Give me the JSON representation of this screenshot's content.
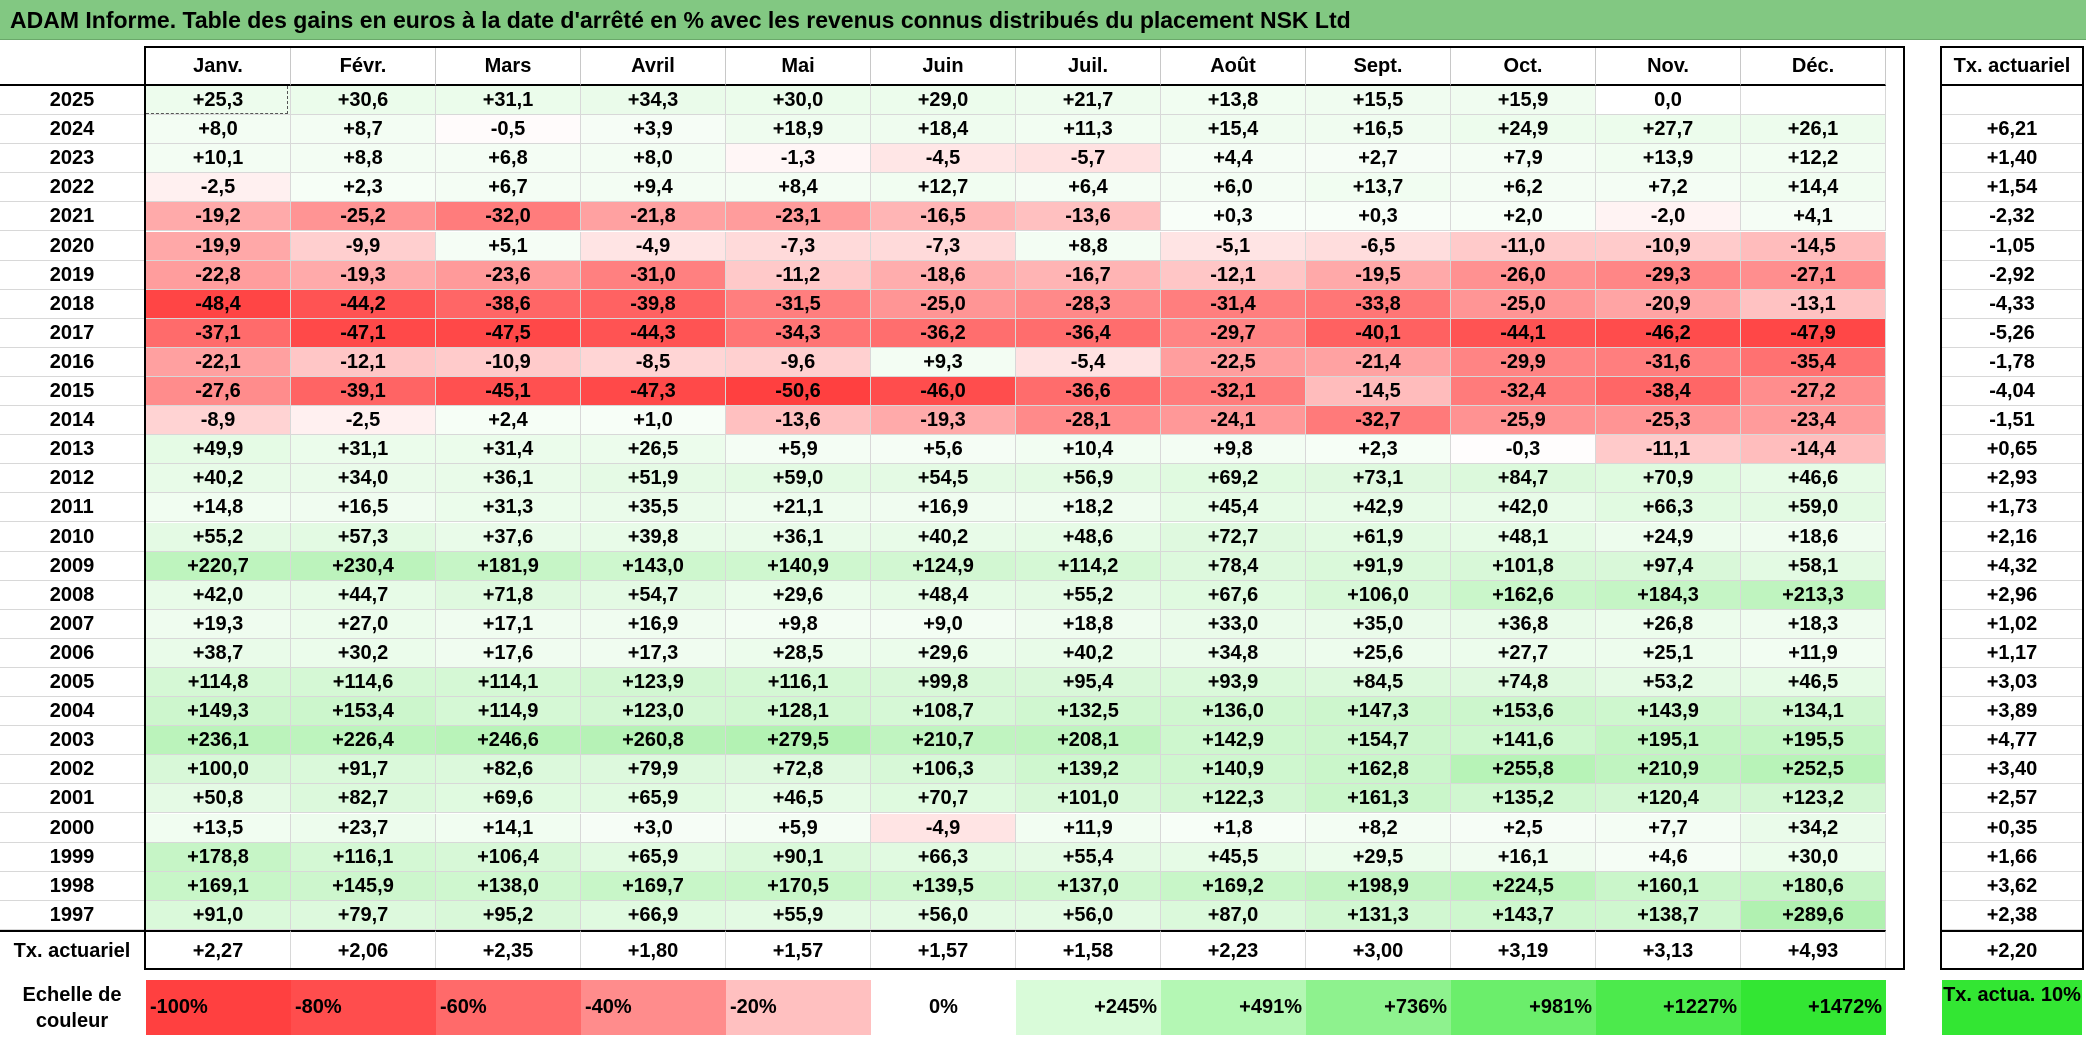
{
  "title": "ADAM Informe. Table des gains en euros à la date d'arrêté en % avec les revenus connus distribués du placement NSK Ltd",
  "months": [
    "Janv.",
    "Févr.",
    "Mars",
    "Avril",
    "Mai",
    "Juin",
    "Juil.",
    "Août",
    "Sept.",
    "Oct.",
    "Nov.",
    "Déc."
  ],
  "act_header": "Tx. actuariel",
  "rows": [
    {
      "year": "2025",
      "values": [
        "+25,3",
        "+30,6",
        "+31,1",
        "+34,3",
        "+30,0",
        "+29,0",
        "+21,7",
        "+13,8",
        "+15,5",
        "+15,9",
        "0,0",
        ""
      ],
      "act": ""
    },
    {
      "year": "2024",
      "values": [
        "+8,0",
        "+8,7",
        "-0,5",
        "+3,9",
        "+18,9",
        "+18,4",
        "+11,3",
        "+15,4",
        "+16,5",
        "+24,9",
        "+27,7",
        "+26,1"
      ],
      "act": "+6,21"
    },
    {
      "year": "2023",
      "values": [
        "+10,1",
        "+8,8",
        "+6,8",
        "+8,0",
        "-1,3",
        "-4,5",
        "-5,7",
        "+4,4",
        "+2,7",
        "+7,9",
        "+13,9",
        "+12,2"
      ],
      "act": "+1,40"
    },
    {
      "year": "2022",
      "values": [
        "-2,5",
        "+2,3",
        "+6,7",
        "+9,4",
        "+8,4",
        "+12,7",
        "+6,4",
        "+6,0",
        "+13,7",
        "+6,2",
        "+7,2",
        "+14,4"
      ],
      "act": "+1,54"
    },
    {
      "year": "2021",
      "values": [
        "-19,2",
        "-25,2",
        "-32,0",
        "-21,8",
        "-23,1",
        "-16,5",
        "-13,6",
        "+0,3",
        "+0,3",
        "+2,0",
        "-2,0",
        "+4,1"
      ],
      "act": "-2,32"
    },
    {
      "year": "2020",
      "values": [
        "-19,9",
        "-9,9",
        "+5,1",
        "-4,9",
        "-7,3",
        "-7,3",
        "+8,8",
        "-5,1",
        "-6,5",
        "-11,0",
        "-10,9",
        "-14,5"
      ],
      "act": "-1,05"
    },
    {
      "year": "2019",
      "values": [
        "-22,8",
        "-19,3",
        "-23,6",
        "-31,0",
        "-11,2",
        "-18,6",
        "-16,7",
        "-12,1",
        "-19,5",
        "-26,0",
        "-29,3",
        "-27,1"
      ],
      "act": "-2,92"
    },
    {
      "year": "2018",
      "values": [
        "-48,4",
        "-44,2",
        "-38,6",
        "-39,8",
        "-31,5",
        "-25,0",
        "-28,3",
        "-31,4",
        "-33,8",
        "-25,0",
        "-20,9",
        "-13,1"
      ],
      "act": "-4,33"
    },
    {
      "year": "2017",
      "values": [
        "-37,1",
        "-47,1",
        "-47,5",
        "-44,3",
        "-34,3",
        "-36,2",
        "-36,4",
        "-29,7",
        "-40,1",
        "-44,1",
        "-46,2",
        "-47,9"
      ],
      "act": "-5,26"
    },
    {
      "year": "2016",
      "values": [
        "-22,1",
        "-12,1",
        "-10,9",
        "-8,5",
        "-9,6",
        "+9,3",
        "-5,4",
        "-22,5",
        "-21,4",
        "-29,9",
        "-31,6",
        "-35,4"
      ],
      "act": "-1,78"
    },
    {
      "year": "2015",
      "values": [
        "-27,6",
        "-39,1",
        "-45,1",
        "-47,3",
        "-50,6",
        "-46,0",
        "-36,6",
        "-32,1",
        "-14,5",
        "-32,4",
        "-38,4",
        "-27,2"
      ],
      "act": "-4,04"
    },
    {
      "year": "2014",
      "values": [
        "-8,9",
        "-2,5",
        "+2,4",
        "+1,0",
        "-13,6",
        "-19,3",
        "-28,1",
        "-24,1",
        "-32,7",
        "-25,9",
        "-25,3",
        "-23,4"
      ],
      "act": "-1,51"
    },
    {
      "year": "2013",
      "values": [
        "+49,9",
        "+31,1",
        "+31,4",
        "+26,5",
        "+5,9",
        "+5,6",
        "+10,4",
        "+9,8",
        "+2,3",
        "-0,3",
        "-11,1",
        "-14,4"
      ],
      "act": "+0,65"
    },
    {
      "year": "2012",
      "values": [
        "+40,2",
        "+34,0",
        "+36,1",
        "+51,9",
        "+59,0",
        "+54,5",
        "+56,9",
        "+69,2",
        "+73,1",
        "+84,7",
        "+70,9",
        "+46,6"
      ],
      "act": "+2,93"
    },
    {
      "year": "2011",
      "values": [
        "+14,8",
        "+16,5",
        "+31,3",
        "+35,5",
        "+21,1",
        "+16,9",
        "+18,2",
        "+45,4",
        "+42,9",
        "+42,0",
        "+66,3",
        "+59,0"
      ],
      "act": "+1,73"
    },
    {
      "year": "2010",
      "values": [
        "+55,2",
        "+57,3",
        "+37,6",
        "+39,8",
        "+36,1",
        "+40,2",
        "+48,6",
        "+72,7",
        "+61,9",
        "+48,1",
        "+24,9",
        "+18,6"
      ],
      "act": "+2,16"
    },
    {
      "year": "2009",
      "values": [
        "+220,7",
        "+230,4",
        "+181,9",
        "+143,0",
        "+140,9",
        "+124,9",
        "+114,2",
        "+78,4",
        "+91,9",
        "+101,8",
        "+97,4",
        "+58,1"
      ],
      "act": "+4,32"
    },
    {
      "year": "2008",
      "values": [
        "+42,0",
        "+44,7",
        "+71,8",
        "+54,7",
        "+29,6",
        "+48,4",
        "+55,2",
        "+67,6",
        "+106,0",
        "+162,6",
        "+184,3",
        "+213,3"
      ],
      "act": "+2,96"
    },
    {
      "year": "2007",
      "values": [
        "+19,3",
        "+27,0",
        "+17,1",
        "+16,9",
        "+9,8",
        "+9,0",
        "+18,8",
        "+33,0",
        "+35,0",
        "+36,8",
        "+26,8",
        "+18,3"
      ],
      "act": "+1,02"
    },
    {
      "year": "2006",
      "values": [
        "+38,7",
        "+30,2",
        "+17,6",
        "+17,3",
        "+28,5",
        "+29,6",
        "+40,2",
        "+34,8",
        "+25,6",
        "+27,7",
        "+25,1",
        "+11,9"
      ],
      "act": "+1,17"
    },
    {
      "year": "2005",
      "values": [
        "+114,8",
        "+114,6",
        "+114,1",
        "+123,9",
        "+116,1",
        "+99,8",
        "+95,4",
        "+93,9",
        "+84,5",
        "+74,8",
        "+53,2",
        "+46,5"
      ],
      "act": "+3,03"
    },
    {
      "year": "2004",
      "values": [
        "+149,3",
        "+153,4",
        "+114,9",
        "+123,0",
        "+128,1",
        "+108,7",
        "+132,5",
        "+136,0",
        "+147,3",
        "+153,6",
        "+143,9",
        "+134,1"
      ],
      "act": "+3,89"
    },
    {
      "year": "2003",
      "values": [
        "+236,1",
        "+226,4",
        "+246,6",
        "+260,8",
        "+279,5",
        "+210,7",
        "+208,1",
        "+142,9",
        "+154,7",
        "+141,6",
        "+195,1",
        "+195,5"
      ],
      "act": "+4,77"
    },
    {
      "year": "2002",
      "values": [
        "+100,0",
        "+91,7",
        "+82,6",
        "+79,9",
        "+72,8",
        "+106,3",
        "+139,2",
        "+140,9",
        "+162,8",
        "+255,8",
        "+210,9",
        "+252,5"
      ],
      "act": "+3,40"
    },
    {
      "year": "2001",
      "values": [
        "+50,8",
        "+82,7",
        "+69,6",
        "+65,9",
        "+46,5",
        "+70,7",
        "+101,0",
        "+122,3",
        "+161,3",
        "+135,2",
        "+120,4",
        "+123,2"
      ],
      "act": "+2,57"
    },
    {
      "year": "2000",
      "values": [
        "+13,5",
        "+23,7",
        "+14,1",
        "+3,0",
        "+5,9",
        "-4,9",
        "+11,9",
        "+1,8",
        "+8,2",
        "+2,5",
        "+7,7",
        "+34,2"
      ],
      "act": "+0,35"
    },
    {
      "year": "1999",
      "values": [
        "+178,8",
        "+116,1",
        "+106,4",
        "+65,9",
        "+90,1",
        "+66,3",
        "+55,4",
        "+45,5",
        "+29,5",
        "+16,1",
        "+4,6",
        "+30,0"
      ],
      "act": "+1,66"
    },
    {
      "year": "1998",
      "values": [
        "+169,1",
        "+145,9",
        "+138,0",
        "+169,7",
        "+170,5",
        "+139,5",
        "+137,0",
        "+169,2",
        "+198,9",
        "+224,5",
        "+160,1",
        "+180,6"
      ],
      "act": "+3,62"
    },
    {
      "year": "1997",
      "values": [
        "+91,0",
        "+79,7",
        "+95,2",
        "+66,9",
        "+55,9",
        "+56,0",
        "+56,0",
        "+87,0",
        "+131,3",
        "+143,7",
        "+138,7",
        "+289,6"
      ],
      "act": "+2,38"
    }
  ],
  "footer": {
    "label": "Tx. actuariel",
    "values": [
      "+2,27",
      "+2,06",
      "+2,35",
      "+1,80",
      "+1,57",
      "+1,57",
      "+1,58",
      "+2,23",
      "+3,00",
      "+3,19",
      "+3,13",
      "+4,93"
    ],
    "act": "+2,20"
  },
  "scale": {
    "label": "Echelle de couleur",
    "items": [
      {
        "text": "-100%",
        "color": "#ff4040",
        "align": "left"
      },
      {
        "text": "-80%",
        "color": "#ff4d4d",
        "align": "left"
      },
      {
        "text": "-60%",
        "color": "#ff6a6a",
        "align": "left"
      },
      {
        "text": "-40%",
        "color": "#ff8c8c",
        "align": "left"
      },
      {
        "text": "-20%",
        "color": "#ffc0c0",
        "align": "left"
      },
      {
        "text": "0%",
        "color": "#ffffff",
        "align": "center"
      },
      {
        "text": "+245%",
        "color": "#d9fbd9",
        "align": "right"
      },
      {
        "text": "+491%",
        "color": "#b4f7b4",
        "align": "right"
      },
      {
        "text": "+736%",
        "color": "#8ef28e",
        "align": "right"
      },
      {
        "text": "+981%",
        "color": "#6bee6b",
        "align": "right"
      },
      {
        "text": "+1227%",
        "color": "#4cea4c",
        "align": "right"
      },
      {
        "text": "+1472%",
        "color": "#33e633",
        "align": "right"
      }
    ],
    "act_text": "Tx. actua. 10%",
    "act_color": "#33e633"
  }
}
